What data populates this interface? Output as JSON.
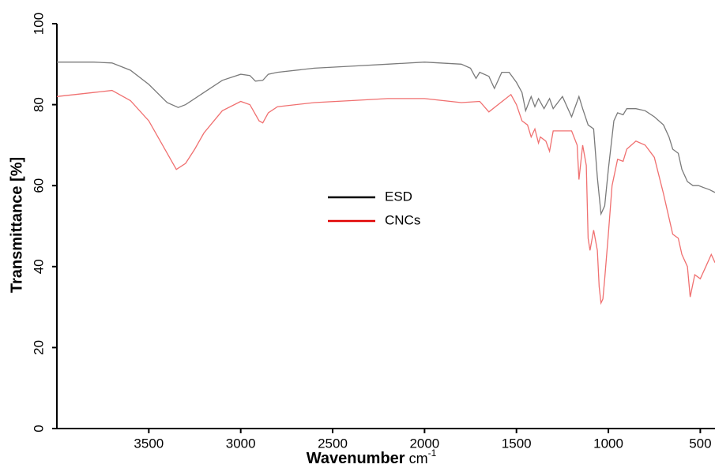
{
  "chart_data": {
    "type": "line",
    "y_label": "Transmittance [%]",
    "x_label": "Wavenumber",
    "x_unit": "cm",
    "x_unit_exponent": "-1",
    "xlim": [
      4000,
      420
    ],
    "xticks": [
      3500,
      3000,
      2500,
      2000,
      1500,
      1000,
      500
    ],
    "ylim": [
      0,
      100
    ],
    "yticks": [
      0,
      20,
      40,
      60,
      80,
      100
    ],
    "grid": false,
    "legend_position": "center",
    "series": [
      {
        "name": "ESD",
        "color": "#7a7a7a",
        "legend_color": "#000000",
        "x": [
          4000,
          3800,
          3700,
          3600,
          3500,
          3400,
          3340,
          3300,
          3200,
          3100,
          3000,
          2950,
          2920,
          2880,
          2850,
          2800,
          2600,
          2400,
          2200,
          2000,
          1800,
          1750,
          1720,
          1700,
          1650,
          1620,
          1580,
          1540,
          1500,
          1470,
          1450,
          1420,
          1400,
          1380,
          1350,
          1320,
          1300,
          1250,
          1200,
          1160,
          1140,
          1110,
          1080,
          1060,
          1040,
          1020,
          1000,
          970,
          950,
          920,
          900,
          850,
          800,
          750,
          700,
          670,
          650,
          620,
          600,
          570,
          540,
          510,
          480,
          450,
          420
        ],
        "values": [
          90.5,
          90.5,
          90.3,
          88.5,
          85,
          80.5,
          79.3,
          80,
          83,
          86,
          87.5,
          87.2,
          85.8,
          86,
          87.5,
          88,
          89,
          89.5,
          90,
          90.5,
          90,
          89,
          86.5,
          88,
          87,
          84,
          88,
          88,
          85.5,
          83,
          78.5,
          82,
          79.5,
          81.5,
          79,
          81.5,
          79,
          82,
          77,
          82,
          79,
          75,
          74,
          62,
          53,
          55,
          64,
          76,
          78,
          77.5,
          79,
          79,
          78.5,
          77,
          75,
          72,
          69,
          68,
          64,
          61,
          60,
          60,
          59.5,
          59,
          58.3
        ]
      },
      {
        "name": "CNCs",
        "color": "#f07070",
        "legend_color": "#e00000",
        "x": [
          4000,
          3800,
          3700,
          3600,
          3500,
          3400,
          3350,
          3300,
          3250,
          3200,
          3100,
          3000,
          2950,
          2900,
          2880,
          2850,
          2800,
          2600,
          2400,
          2200,
          2000,
          1800,
          1700,
          1650,
          1600,
          1530,
          1500,
          1470,
          1440,
          1420,
          1400,
          1380,
          1370,
          1340,
          1320,
          1300,
          1250,
          1200,
          1170,
          1160,
          1140,
          1120,
          1110,
          1100,
          1080,
          1060,
          1050,
          1040,
          1030,
          1020,
          1000,
          980,
          950,
          920,
          900,
          850,
          800,
          750,
          700,
          670,
          650,
          620,
          600,
          570,
          555,
          530,
          500,
          470,
          440,
          420
        ],
        "values": [
          82,
          83,
          83.5,
          81,
          76,
          68,
          64,
          65.5,
          69,
          73,
          78.5,
          80.8,
          80,
          76,
          75.5,
          78,
          79.5,
          80.5,
          81,
          81.5,
          81.5,
          80.5,
          80.8,
          78.2,
          80,
          82.5,
          80,
          76,
          75,
          72,
          74,
          70.5,
          72,
          71,
          68.5,
          73.5,
          73.5,
          73.5,
          70,
          61.5,
          70,
          65,
          47,
          44,
          49,
          44,
          35,
          31,
          32,
          37,
          48,
          60,
          66.5,
          66,
          69,
          71,
          70,
          67,
          58,
          52,
          48,
          47,
          43,
          40,
          32.5,
          38,
          37,
          40,
          43,
          41
        ]
      }
    ]
  }
}
